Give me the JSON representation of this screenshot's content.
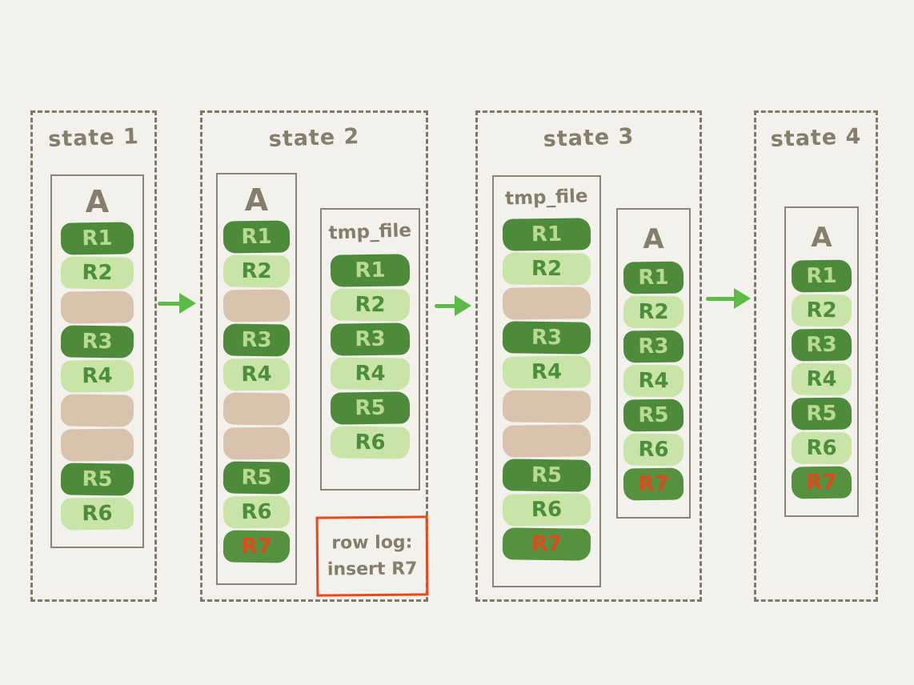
{
  "colors": {
    "background": "#f3f1eb",
    "dashed_border": "#7f7969",
    "box_border": "#8a8476",
    "grey_text": "#857e6d",
    "dark_green_block": "#4e8a3c",
    "light_green_block": "#c8e4a7",
    "tan_block": "#d9c3ae",
    "text_on_dark": "#b7da92",
    "text_on_light": "#4d8e3e",
    "alert_red": "#dd4a1b",
    "note_border": "#e8481c",
    "arrow_green": "#5cbb47"
  },
  "states": [
    {
      "title": "state 1",
      "containers": [
        {
          "label": "A",
          "rows": [
            {
              "label": "R1",
              "kind": "dark"
            },
            {
              "label": "R2",
              "kind": "light"
            },
            {
              "label": "",
              "kind": "gap"
            },
            {
              "label": "R3",
              "kind": "dark"
            },
            {
              "label": "R4",
              "kind": "light"
            },
            {
              "label": "",
              "kind": "gap"
            },
            {
              "label": "",
              "kind": "gap"
            },
            {
              "label": "R5",
              "kind": "dark"
            },
            {
              "label": "R6",
              "kind": "light"
            }
          ]
        }
      ]
    },
    {
      "title": "state 2",
      "containers": [
        {
          "label": "A",
          "rows": [
            {
              "label": "R1",
              "kind": "dark"
            },
            {
              "label": "R2",
              "kind": "light"
            },
            {
              "label": "",
              "kind": "gap"
            },
            {
              "label": "R3",
              "kind": "dark"
            },
            {
              "label": "R4",
              "kind": "light"
            },
            {
              "label": "",
              "kind": "gap"
            },
            {
              "label": "",
              "kind": "gap"
            },
            {
              "label": "R5",
              "kind": "dark"
            },
            {
              "label": "R6",
              "kind": "light"
            },
            {
              "label": "R7",
              "kind": "dark-alert"
            }
          ]
        },
        {
          "label": "tmp_file",
          "rows": [
            {
              "label": "R1",
              "kind": "dark"
            },
            {
              "label": "R2",
              "kind": "light"
            },
            {
              "label": "R3",
              "kind": "dark"
            },
            {
              "label": "R4",
              "kind": "light"
            },
            {
              "label": "R5",
              "kind": "dark"
            },
            {
              "label": "R6",
              "kind": "light"
            }
          ]
        }
      ],
      "note": {
        "line1": "row log:",
        "line2": "insert R7"
      }
    },
    {
      "title": "state 3",
      "containers": [
        {
          "label": "tmp_file",
          "rows": [
            {
              "label": "R1",
              "kind": "dark"
            },
            {
              "label": "R2",
              "kind": "light"
            },
            {
              "label": "",
              "kind": "gap"
            },
            {
              "label": "R3",
              "kind": "dark"
            },
            {
              "label": "R4",
              "kind": "light"
            },
            {
              "label": "",
              "kind": "gap"
            },
            {
              "label": "",
              "kind": "gap"
            },
            {
              "label": "R5",
              "kind": "dark"
            },
            {
              "label": "R6",
              "kind": "light"
            },
            {
              "label": "R7",
              "kind": "dark-alert"
            }
          ]
        },
        {
          "label": "A",
          "rows": [
            {
              "label": "R1",
              "kind": "dark"
            },
            {
              "label": "R2",
              "kind": "light"
            },
            {
              "label": "R3",
              "kind": "dark"
            },
            {
              "label": "R4",
              "kind": "light"
            },
            {
              "label": "R5",
              "kind": "dark"
            },
            {
              "label": "R6",
              "kind": "light"
            },
            {
              "label": "R7",
              "kind": "dark-alert"
            }
          ]
        }
      ]
    },
    {
      "title": "state 4",
      "containers": [
        {
          "label": "A",
          "rows": [
            {
              "label": "R1",
              "kind": "dark"
            },
            {
              "label": "R2",
              "kind": "light"
            },
            {
              "label": "R3",
              "kind": "dark"
            },
            {
              "label": "R4",
              "kind": "light"
            },
            {
              "label": "R5",
              "kind": "dark"
            },
            {
              "label": "R6",
              "kind": "light"
            },
            {
              "label": "R7",
              "kind": "dark-alert"
            }
          ]
        }
      ]
    }
  ],
  "arrows": [
    {
      "name": "state1-to-state2"
    },
    {
      "name": "state2-to-state3"
    },
    {
      "name": "state3-to-state4"
    }
  ]
}
